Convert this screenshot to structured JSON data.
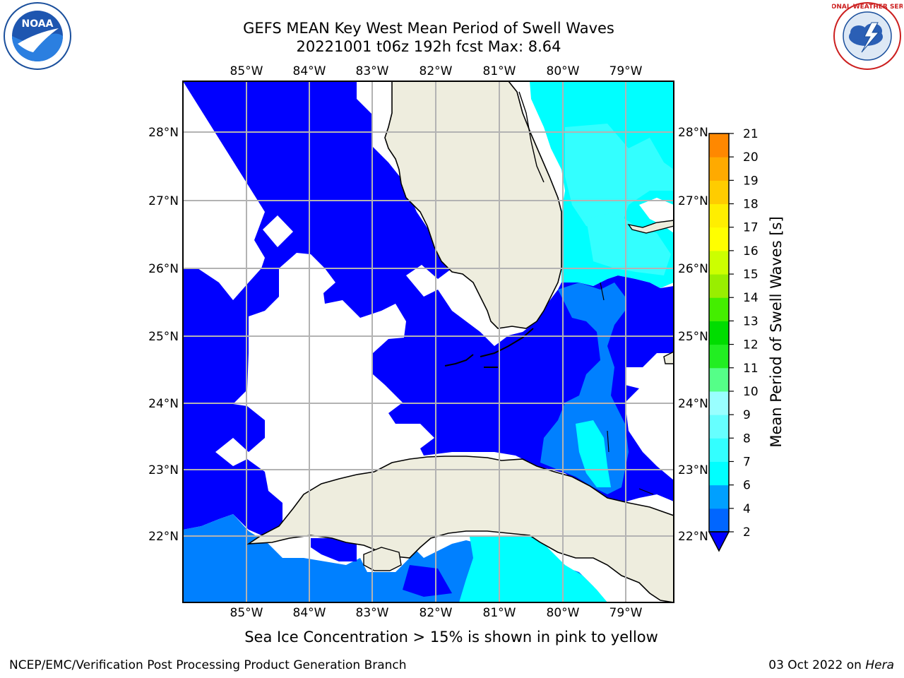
{
  "title_line1": "GEFS MEAN Key West Mean Period of Swell Waves",
  "title_line2": "20221001 t06z 192h fcst   Max: 8.64",
  "lon_labels": [
    "85°W",
    "84°W",
    "83°W",
    "82°W",
    "81°W",
    "80°W",
    "79°W"
  ],
  "lat_labels": [
    "28°N",
    "27°N",
    "26°N",
    "25°N",
    "24°N",
    "23°N",
    "22°N"
  ],
  "colorbar": {
    "label": "Mean Period of Swell Waves [s]",
    "ticks": [
      "2",
      "4",
      "6",
      "7",
      "8",
      "9",
      "10",
      "11",
      "12",
      "13",
      "14",
      "15",
      "16",
      "17",
      "18",
      "19",
      "20",
      "21"
    ],
    "colors": [
      "#0066ff",
      "#00a0ff",
      "#00ffff",
      "#33ffff",
      "#66ffff",
      "#99ffff",
      "#55ff88",
      "#22ee22",
      "#00dd00",
      "#44ee00",
      "#99ee00",
      "#ccff00",
      "#ffff00",
      "#ffee00",
      "#ffcc00",
      "#ffaa00",
      "#ff8800",
      "#ff5500",
      "#ff2200",
      "#ff0000"
    ],
    "under_color": "#0000ff"
  },
  "legend_colors": {
    "land": "#eeedde",
    "open_water_low": "#0000ff",
    "swell_2_4": "#0080ff",
    "swell_4_6": "#00ffff",
    "swell_6_8": "#33ffff",
    "no_data": "#ffffff",
    "grid": "#b3b3b3"
  },
  "sea_ice_note": "Sea Ice Concentration > 15% is shown in pink to yellow",
  "credit_left": "NCEP/EMC/Verification Post Processing Product Generation Branch",
  "credit_date": "03 Oct 2022 on ",
  "credit_machine": "Hera",
  "logos": {
    "left": "NOAA",
    "left_ring": "NATIONAL OCEANIC AND ATMOSPHERIC ADMINISTRATION · U.S. DEPARTMENT OF COMMERCE",
    "right_ring": "NATIONAL WEATHER SERVICE"
  }
}
